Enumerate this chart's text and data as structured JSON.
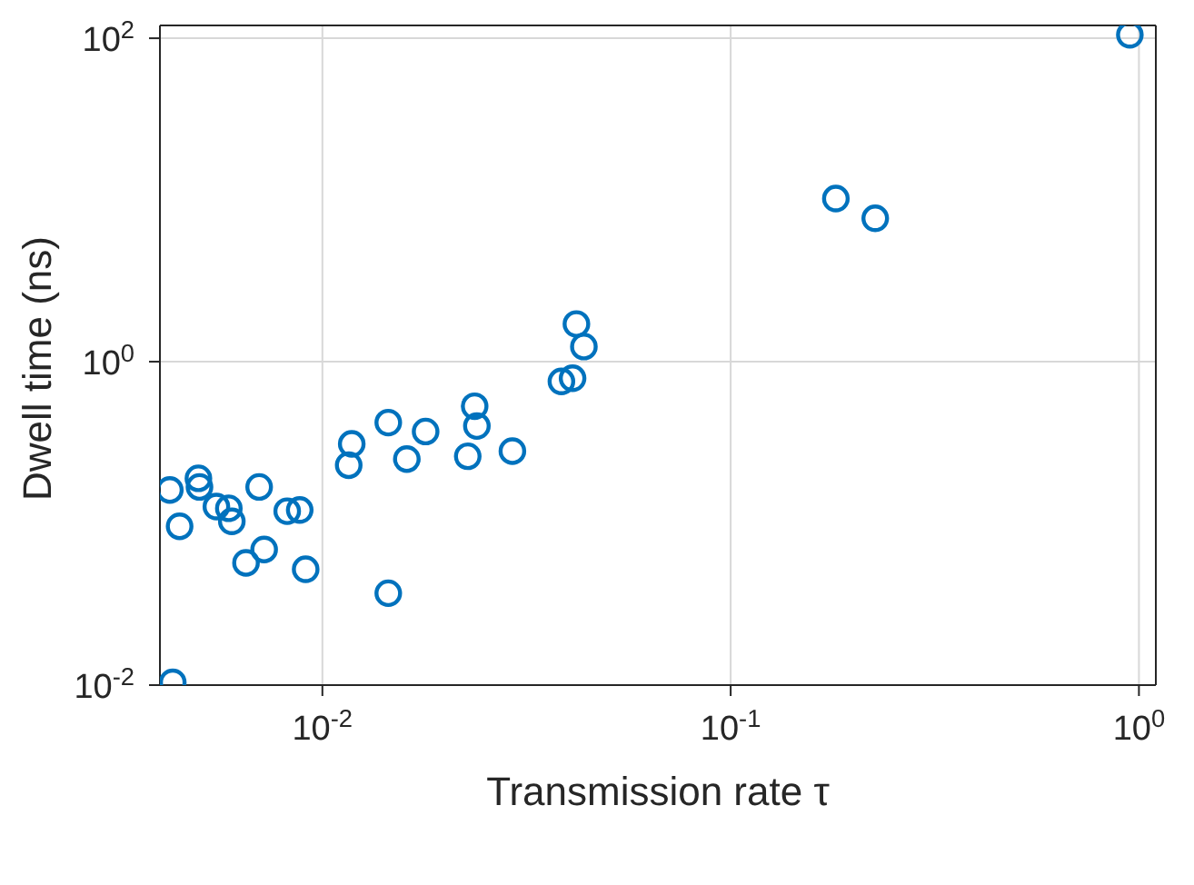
{
  "chart_data": {
    "type": "scatter",
    "xlabel": "Transmission rate τ",
    "ylabel": "Dwell time (ns)",
    "log": "xy",
    "grid": true,
    "marker": "circle",
    "xlim": [
      0.004,
      1.1
    ],
    "ylim": [
      0.01,
      120
    ],
    "xticks": [
      {
        "value": 0.01,
        "label": "10$^{-2}$"
      },
      {
        "value": 0.1,
        "label": "10$^{-1}$"
      },
      {
        "value": 1,
        "label": "10$^{0}$"
      }
    ],
    "yticks": [
      {
        "value": 0.01,
        "label": "10$^{-2}$"
      },
      {
        "value": 1,
        "label": "10$^{0}$"
      },
      {
        "value": 100,
        "label": "10$^{2}$"
      }
    ],
    "series": [
      {
        "color": "#0072bd",
        "x": [
          0.00423,
          0.00447,
          0.00497,
          0.005,
          0.0055,
          0.0059,
          0.006,
          0.0065,
          0.007,
          0.0072,
          0.0082,
          0.0088,
          0.0091,
          0.0043,
          0.0116,
          0.0118,
          0.0145,
          0.0145,
          0.0161,
          0.0179,
          0.0227,
          0.0236,
          0.0239,
          0.0292,
          0.0385,
          0.041,
          0.0419,
          0.0437,
          0.181,
          0.226,
          0.95
        ],
        "values": [
          0.161,
          0.096,
          0.19,
          0.168,
          0.127,
          0.124,
          0.103,
          0.057,
          0.168,
          0.069,
          0.119,
          0.121,
          0.052,
          0.0104,
          0.229,
          0.31,
          0.42,
          0.037,
          0.25,
          0.37,
          0.26,
          0.53,
          0.4,
          0.28,
          0.755,
          0.79,
          1.71,
          1.24,
          10.2,
          7.7,
          105
        ]
      }
    ]
  }
}
